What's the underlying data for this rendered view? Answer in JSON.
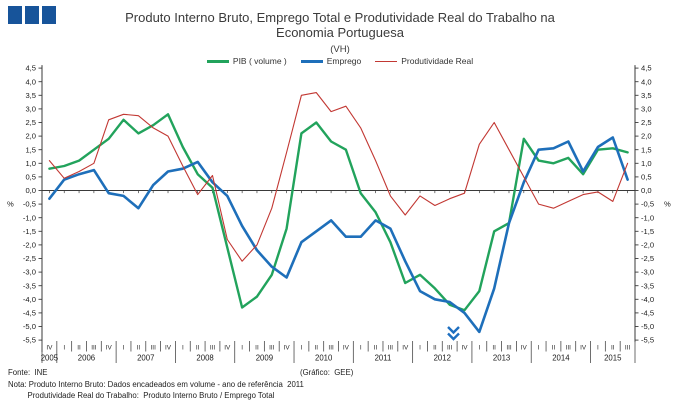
{
  "header": {
    "title_line1": "Produto Interno Bruto, Emprego Total e Produtividade Real do Trabalho na",
    "title_line2": "Economia Portuguesa",
    "subtitle": "(VH)"
  },
  "legend": [
    {
      "label": "PIB ( volume )",
      "color": "#22a35c",
      "thickness": 3
    },
    {
      "label": "Emprego",
      "color": "#1e6fba",
      "thickness": 3
    },
    {
      "label": "Produtividade Real",
      "color": "#c23833",
      "thickness": 1.4
    }
  ],
  "footer": {
    "fonte": "Fonte:  INE",
    "grafico": "(Gráfico:  GEE)",
    "nota1": "Nota: Produto Interno Bruto: Dados encadeados em volume - ano de referência  2011",
    "nota2": "         Produtividade Real do Trabalho:  Produto Interno Bruto / Emprego Total"
  },
  "decor": {
    "logo_color": "#17549a",
    "marker_color": "#1e6fc0"
  },
  "chart_data": {
    "type": "line",
    "title": "Produto Interno Bruto, Emprego Total e Produtividade Real do Trabalho na Economia Portuguesa (VH)",
    "ylabel_left": "%",
    "ylabel_right": "%",
    "ylim": [
      -5.5,
      4.5
    ],
    "ytick_step": 0.5,
    "grid": false,
    "legend_position": "top-center",
    "quarter_labels": [
      "IV",
      "I",
      "II",
      "III",
      "IV",
      "I",
      "II",
      "III",
      "IV",
      "I",
      "II",
      "III",
      "IV",
      "I",
      "II",
      "III",
      "IV",
      "I",
      "II",
      "III",
      "IV",
      "I",
      "II",
      "III",
      "IV",
      "I",
      "II",
      "III",
      "IV",
      "I",
      "II",
      "III",
      "IV",
      "I",
      "II",
      "III",
      "IV",
      "I",
      "II",
      "III"
    ],
    "year_groups": [
      {
        "label": "2005",
        "quarters": 1
      },
      {
        "label": "2006",
        "quarters": 4
      },
      {
        "label": "2007",
        "quarters": 4
      },
      {
        "label": "2008",
        "quarters": 4
      },
      {
        "label": "2009",
        "quarters": 4
      },
      {
        "label": "2010",
        "quarters": 4
      },
      {
        "label": "2011",
        "quarters": 4
      },
      {
        "label": "2012",
        "quarters": 4
      },
      {
        "label": "2013",
        "quarters": 4
      },
      {
        "label": "2014",
        "quarters": 4
      },
      {
        "label": "2015",
        "quarters": 3
      }
    ],
    "series": [
      {
        "name": "PIB ( volume )",
        "color": "#22a35c",
        "width": 2.4,
        "values": [
          0.8,
          0.9,
          1.1,
          1.5,
          1.9,
          2.6,
          2.1,
          2.4,
          2.8,
          1.6,
          0.6,
          0.1,
          -2.1,
          -4.3,
          -3.9,
          -3.1,
          -1.4,
          2.1,
          2.5,
          1.8,
          1.5,
          -0.1,
          -0.8,
          -1.9,
          -3.4,
          -3.1,
          -3.6,
          -4.2,
          -4.4,
          -3.7,
          -1.5,
          -1.2,
          1.9,
          1.1,
          1.0,
          1.2,
          0.6,
          1.5,
          1.55,
          1.4
        ]
      },
      {
        "name": "Emprego",
        "color": "#1e6fba",
        "width": 2.6,
        "values": [
          -0.3,
          0.4,
          0.6,
          0.75,
          -0.1,
          -0.2,
          -0.65,
          0.2,
          0.7,
          0.8,
          1.05,
          0.3,
          -0.2,
          -1.3,
          -2.2,
          -2.8,
          -3.2,
          -1.9,
          -1.5,
          -1.1,
          -1.7,
          -1.7,
          -1.1,
          -1.4,
          -2.6,
          -3.7,
          -4.0,
          -4.1,
          -4.5,
          -5.2,
          -3.6,
          -1.2,
          0.3,
          1.5,
          1.55,
          1.8,
          0.7,
          1.6,
          1.95,
          0.4
        ]
      },
      {
        "name": "Produtividade Real",
        "color": "#c23833",
        "width": 1.1,
        "values": [
          1.1,
          0.45,
          0.7,
          1.0,
          2.6,
          2.8,
          2.75,
          2.3,
          2.0,
          0.9,
          -0.15,
          0.55,
          -1.8,
          -2.6,
          -2.0,
          -0.65,
          1.4,
          3.5,
          3.6,
          2.9,
          3.1,
          2.3,
          1.1,
          -0.2,
          -0.9,
          -0.2,
          -0.55,
          -0.3,
          -0.1,
          1.7,
          2.5,
          1.5,
          0.5,
          -0.5,
          -0.65,
          -0.4,
          -0.15,
          -0.05,
          -0.4,
          1.0
        ]
      }
    ]
  }
}
